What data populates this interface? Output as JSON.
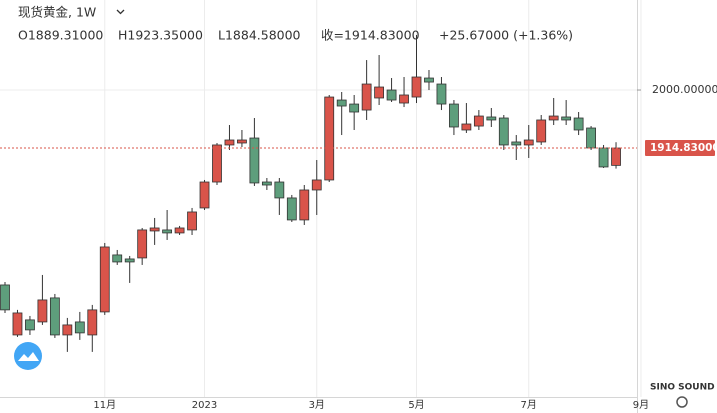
{
  "chart_data": {
    "type": "candlestick",
    "title": "现货黄金, 1W",
    "ohlc_labels": [
      "O1889.31000",
      "H1923.35000",
      "L1884.58000",
      "收=1914.83000",
      "+25.67000 (+1.36%)"
    ],
    "categories": [
      null,
      null,
      null,
      null,
      null,
      null,
      null,
      null,
      "11月",
      null,
      null,
      null,
      null,
      null,
      null,
      null,
      "2023",
      null,
      null,
      null,
      null,
      null,
      null,
      null,
      null,
      "3月",
      null,
      null,
      null,
      null,
      null,
      null,
      null,
      "5月",
      null,
      null,
      null,
      null,
      null,
      null,
      null,
      null,
      "7月",
      null,
      null,
      null,
      null,
      null,
      null,
      null,
      null,
      "9月"
    ],
    "open": [
      1713.7,
      1640.3,
      1662.4,
      1659.4,
      1694.7,
      1640.3,
      1659.4,
      1640.3,
      1674.1,
      1757.8,
      1751.9,
      1753.4,
      1793.0,
      1794.5,
      1790.1,
      1794.5,
      1826.8,
      1864.9,
      1919.3,
      1922.2,
      1929.5,
      1864.9,
      1864.9,
      1841.5,
      1809.2,
      1853.2,
      1867.9,
      1985.3,
      1979.4,
      1970.6,
      1988.3,
      2000.0,
      1980.9,
      1989.7,
      2017.6,
      2008.8,
      1979.4,
      1941.3,
      1947.1,
      1960.4,
      1958.9,
      1923.7,
      1919.3,
      1923.7,
      1956.0,
      1960.4,
      1958.9,
      1944.2,
      1914.9,
      1889.31,
      null,
      null
    ],
    "high": [
      1718.1,
      1677.1,
      1668.2,
      1728.4,
      1700.5,
      1665.3,
      1674.1,
      1684.4,
      1775.4,
      1765.1,
      1756.3,
      1797.4,
      1812.1,
      1823.8,
      1800.4,
      1826.8,
      1867.9,
      1922.2,
      1948.6,
      1941.3,
      1958.9,
      1870.8,
      1870.8,
      1845.9,
      1860.5,
      1897.2,
      1992.7,
      1997.1,
      1992.7,
      2044.0,
      2051.4,
      2017.6,
      2019.1,
      2080.8,
      2029.4,
      2019.1,
      1985.3,
      1980.9,
      1970.6,
      1973.6,
      1963.3,
      1933.9,
      1948.6,
      1963.3,
      1988.3,
      1985.3,
      1967.7,
      1947.1,
      1919.3,
      1923.35,
      null,
      null
    ],
    "low": [
      1672.6,
      1637.4,
      1640.3,
      1655.0,
      1635.9,
      1615.4,
      1633.0,
      1615.4,
      1669.7,
      1743.1,
      1716.7,
      1743.1,
      1772.5,
      1779.8,
      1787.1,
      1787.1,
      1823.8,
      1860.5,
      1911.9,
      1916.3,
      1859.1,
      1853.2,
      1816.5,
      1806.2,
      1801.8,
      1816.5,
      1864.9,
      1933.9,
      1941.3,
      1956.0,
      1978.0,
      1982.4,
      1975.0,
      1980.9,
      2000.0,
      1970.6,
      1933.9,
      1936.9,
      1941.3,
      1945.7,
      1911.9,
      1897.2,
      1900.2,
      1919.3,
      1948.6,
      1948.6,
      1933.9,
      1911.9,
      1885.5,
      1884.58,
      null,
      null
    ],
    "close": [
      1677.1,
      1672.6,
      1647.7,
      1691.7,
      1640.3,
      1655.0,
      1643.3,
      1677.1,
      1769.5,
      1747.5,
      1747.5,
      1794.5,
      1797.4,
      1790.1,
      1797.4,
      1820.9,
      1864.9,
      1919.3,
      1926.6,
      1926.6,
      1863.5,
      1860.5,
      1841.5,
      1809.2,
      1853.2,
      1867.9,
      1989.7,
      1976.5,
      1967.7,
      2008.8,
      2004.4,
      1985.3,
      1992.7,
      2019.1,
      2011.7,
      1979.4,
      1945.7,
      1950.1,
      1961.8,
      1956.0,
      1919.3,
      1919.3,
      1926.6,
      1956.0,
      1961.8,
      1956.0,
      1941.3,
      1914.9,
      1887.0,
      1914.83,
      null,
      null
    ],
    "up_color": "#d9544a",
    "down_color": "#5e9e7c",
    "ylim": [
      1552.1,
      2132.2
    ],
    "yticks": [
      {
        "value": 2000,
        "label": "2000.00000"
      }
    ],
    "last_price": {
      "value": 1914.83,
      "label": "1914.83000"
    },
    "watermark": "SINO SOUND",
    "grid": true
  }
}
